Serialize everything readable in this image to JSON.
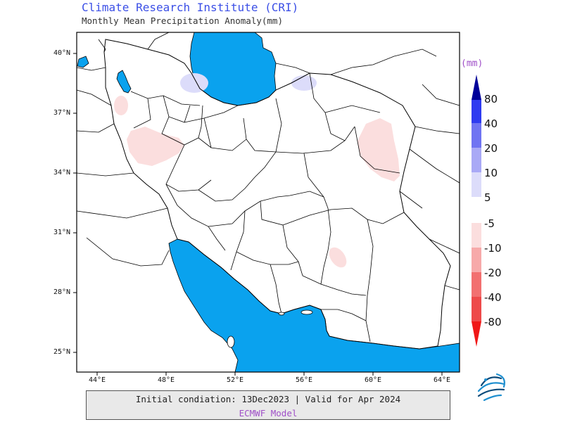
{
  "header": {
    "title": "Climate Research Institute (CRI)",
    "subtitle": "Monthly Mean Precipitation Anomaly(mm)"
  },
  "map": {
    "lat_labels": [
      "40°N",
      "37°N",
      "34°N",
      "31°N",
      "28°N",
      "25°N"
    ],
    "lon_labels": [
      "44°E",
      "48°E",
      "52°E",
      "56°E",
      "60°E",
      "64°E"
    ],
    "water_color": "#0aa2ee",
    "positive_anomalies": [
      {
        "where": "south-west Caspian coast",
        "class": "5 to 10"
      },
      {
        "where": "south-east Caspian coast",
        "class": "5 to 10"
      }
    ],
    "negative_anomalies": [
      {
        "where": "north-west Iran",
        "class": "-5 to -10"
      },
      {
        "where": "west Iran (Zagros)",
        "class": "-5 to -10"
      },
      {
        "where": "north-east Iran (Khorasan)",
        "class": "-5 to -10"
      },
      {
        "where": "south-east Iran (Kerman)",
        "class": "-5 to -10"
      }
    ]
  },
  "legend": {
    "unit": "(mm)",
    "positive": [
      {
        "label": "80",
        "color": "#00009a"
      },
      {
        "label": "40",
        "color": "#2f3bf0"
      },
      {
        "label": "20",
        "color": "#7074f2"
      },
      {
        "label": "10",
        "color": "#a9a9f6"
      },
      {
        "label": "5",
        "color": "#dcdcfa"
      }
    ],
    "negative": [
      {
        "label": "-5",
        "color": "#fbdede"
      },
      {
        "label": "-10",
        "color": "#f7aaaa"
      },
      {
        "label": "-20",
        "color": "#f27070"
      },
      {
        "label": "-40",
        "color": "#ee4a4a"
      },
      {
        "label": "-80",
        "color": "#f01818"
      }
    ]
  },
  "footer": {
    "line1": "Initial condiation: 13Dec2023 | Valid for Apr 2024",
    "line2": "ECMWF Model"
  }
}
